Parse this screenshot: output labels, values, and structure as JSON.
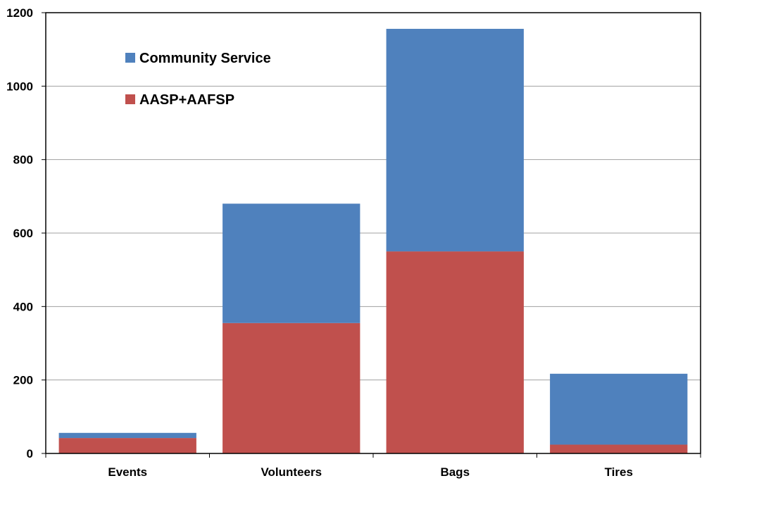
{
  "chart_data": {
    "type": "bar",
    "stacked": true,
    "categories": [
      "Events",
      "Volunteers",
      "Bags",
      "Tires"
    ],
    "series": [
      {
        "name": "AASP+AAFSP",
        "values": [
          42,
          355,
          550,
          24
        ],
        "color": "#c0504d"
      },
      {
        "name": "Community Service",
        "values": [
          14,
          325,
          606,
          193
        ],
        "color": "#4f81bd"
      }
    ],
    "legend": {
      "position": "top-left-inside",
      "order": [
        "Community Service",
        "AASP+AAFSP"
      ]
    },
    "ylim": [
      0,
      1200
    ],
    "yticks": [
      0,
      200,
      400,
      600,
      800,
      1000,
      1200
    ],
    "grid": true,
    "gridline_color": "#a0a0a0",
    "title": "",
    "xlabel": "",
    "ylabel": ""
  }
}
